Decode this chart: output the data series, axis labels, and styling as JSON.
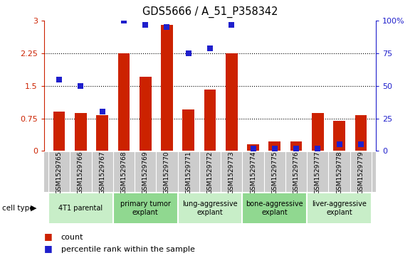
{
  "title": "GDS5666 / A_51_P358342",
  "gsm_labels": [
    "GSM1529765",
    "GSM1529766",
    "GSM1529767",
    "GSM1529768",
    "GSM1529769",
    "GSM1529770",
    "GSM1529771",
    "GSM1529772",
    "GSM1529773",
    "GSM1529774",
    "GSM1529775",
    "GSM1529776",
    "GSM1529777",
    "GSM1529778",
    "GSM1529779"
  ],
  "bar_values": [
    0.9,
    0.88,
    0.82,
    2.25,
    1.7,
    2.9,
    0.95,
    1.42,
    2.25,
    0.15,
    0.22,
    0.22,
    0.88,
    0.7,
    0.82
  ],
  "percentile_values": [
    55,
    50,
    30,
    100,
    97,
    95,
    75,
    79,
    97,
    2,
    2,
    2,
    2,
    5,
    5
  ],
  "bar_color": "#CC2200",
  "dot_color": "#1F1FCC",
  "left_ylim": [
    0,
    3.0
  ],
  "right_ylim": [
    0,
    100
  ],
  "left_yticks": [
    0,
    0.75,
    1.5,
    2.25,
    3.0
  ],
  "left_yticklabels": [
    "0",
    "0.75",
    "1.5",
    "2.25",
    "3"
  ],
  "right_yticks": [
    0,
    25,
    50,
    75,
    100
  ],
  "right_yticklabels": [
    "0",
    "25",
    "50",
    "75",
    "100%"
  ],
  "cell_type_groups": [
    {
      "label": "4T1 parental",
      "start": 0,
      "end": 3,
      "color": "#c8eec8"
    },
    {
      "label": "primary tumor\nexplant",
      "start": 3,
      "end": 6,
      "color": "#90d890"
    },
    {
      "label": "lung-aggressive\nexplant",
      "start": 6,
      "end": 9,
      "color": "#c8eec8"
    },
    {
      "label": "bone-aggressive\nexplant",
      "start": 9,
      "end": 12,
      "color": "#90d890"
    },
    {
      "label": "liver-aggressive\nexplant",
      "start": 12,
      "end": 15,
      "color": "#c8eec8"
    }
  ],
  "legend_count_label": "count",
  "legend_pct_label": "percentile rank within the sample",
  "cell_type_label": "cell type",
  "background_color": "#ffffff",
  "gsm_bg_color": "#cccccc",
  "bar_width": 0.55,
  "dot_size": 30
}
